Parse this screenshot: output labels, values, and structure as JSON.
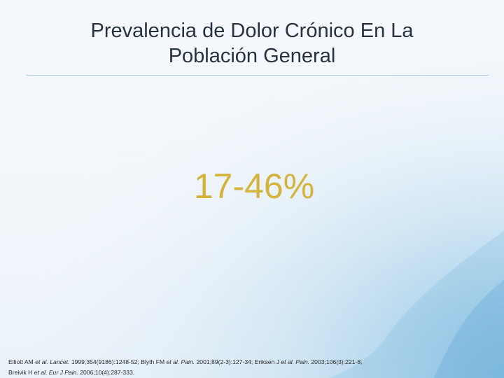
{
  "slide": {
    "title_line1": "Prevalencia de Dolor Crónico En La",
    "title_line2": "Población General",
    "highlight_value": "17-46%",
    "colors": {
      "title": "#26333f",
      "highlight": "#d4b43c",
      "divider": "#a9cce6",
      "watercolor": "#7fb8dd"
    }
  },
  "references": {
    "line1": [
      "Elliott AM ",
      "et al.",
      " ",
      "Lancet.",
      " 1999;354(9186):1248-52; Blyth FM ",
      "et al.",
      " ",
      "Pain.",
      " 2001;89(2-3):127-34; Eriksen J ",
      "et al.",
      " ",
      "Pain.",
      " 2003;106(3):221-8;"
    ],
    "line2": [
      "Breivik H ",
      "et al.",
      " ",
      "Eur J Pain.",
      " 2006;10(4):287-333."
    ]
  }
}
